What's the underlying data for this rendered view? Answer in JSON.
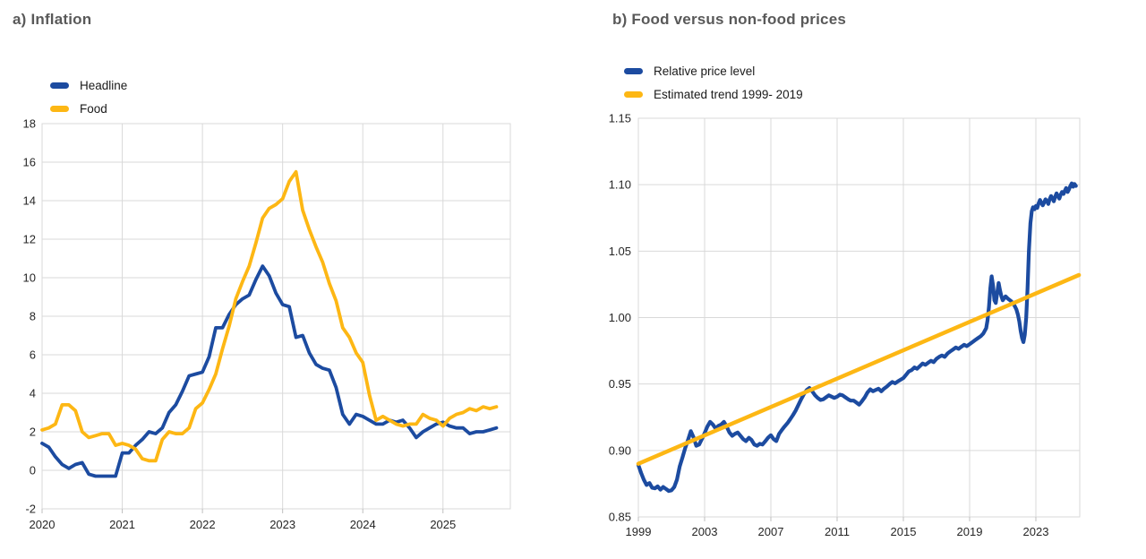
{
  "figure": {
    "background": "#ffffff",
    "title_color": "#595959",
    "grid_color": "#d9d9d9",
    "tick_color": "#bfbfbf",
    "label_color": "#262626"
  },
  "chart_data": [
    {
      "type": "line",
      "title": "a) Inflation",
      "xlabel": "",
      "ylabel": "",
      "xlim": [
        2020,
        2025.84
      ],
      "ylim": [
        -2,
        18
      ],
      "xtick_values": [
        2020,
        2021,
        2022,
        2023,
        2024,
        2025
      ],
      "xtick_labels": [
        "2020",
        "2021",
        "2022",
        "2023",
        "2024",
        "2025"
      ],
      "ytick_values": [
        -2,
        0,
        2,
        4,
        6,
        8,
        10,
        12,
        14,
        16,
        18
      ],
      "ytick_labels": [
        "-2",
        "0",
        "2",
        "4",
        "6",
        "8",
        "10",
        "12",
        "14",
        "16",
        "18"
      ],
      "grid": true,
      "legend_position": "top-left",
      "x_start": 2020.0,
      "x_step": 0.0833333,
      "series": [
        {
          "name": "Headline",
          "color": "#1c4ba0",
          "width": 3.8,
          "values": [
            1.4,
            1.2,
            0.7,
            0.3,
            0.1,
            0.3,
            0.4,
            -0.2,
            -0.3,
            -0.3,
            -0.3,
            -0.3,
            0.9,
            0.9,
            1.3,
            1.6,
            2.0,
            1.9,
            2.2,
            3.0,
            3.4,
            4.1,
            4.9,
            5.0,
            5.1,
            5.9,
            7.4,
            7.4,
            8.1,
            8.6,
            8.9,
            9.1,
            9.9,
            10.6,
            10.1,
            9.2,
            8.6,
            8.5,
            6.9,
            7.0,
            6.1,
            5.5,
            5.3,
            5.2,
            4.3,
            2.9,
            2.4,
            2.9,
            2.8,
            2.6,
            2.4,
            2.4,
            2.6,
            2.5,
            2.6,
            2.2,
            1.7,
            2.0,
            2.2,
            2.4,
            2.5,
            2.3,
            2.2,
            2.2,
            1.9,
            2.0,
            2.0,
            2.1,
            2.2
          ]
        },
        {
          "name": "Food",
          "color": "#fdb714",
          "width": 3.8,
          "values": [
            2.1,
            2.2,
            2.4,
            3.4,
            3.4,
            3.1,
            2.0,
            1.7,
            1.8,
            1.9,
            1.9,
            1.3,
            1.4,
            1.3,
            1.1,
            0.6,
            0.5,
            0.5,
            1.6,
            2.0,
            1.9,
            1.9,
            2.2,
            3.2,
            3.5,
            4.2,
            5.0,
            6.3,
            7.5,
            8.9,
            9.8,
            10.6,
            11.8,
            13.1,
            13.6,
            13.8,
            14.1,
            15.0,
            15.5,
            13.5,
            12.5,
            11.6,
            10.8,
            9.7,
            8.8,
            7.4,
            6.9,
            6.1,
            5.6,
            3.9,
            2.6,
            2.8,
            2.6,
            2.4,
            2.3,
            2.4,
            2.4,
            2.9,
            2.7,
            2.6,
            2.3,
            2.7,
            2.9,
            3.0,
            3.2,
            3.1,
            3.3,
            3.2,
            3.3
          ]
        }
      ]
    },
    {
      "type": "line",
      "title": "b) Food versus non-food prices",
      "xlabel": "",
      "ylabel": "",
      "xlim": [
        1999,
        2025.65
      ],
      "ylim": [
        0.85,
        1.15
      ],
      "xtick_values": [
        1999,
        2003,
        2007,
        2011,
        2015,
        2019,
        2023
      ],
      "xtick_labels": [
        "1999",
        "2003",
        "2007",
        "2011",
        "2015",
        "2019",
        "2023"
      ],
      "ytick_values": [
        0.85,
        0.9,
        0.95,
        1.0,
        1.05,
        1.1,
        1.15
      ],
      "ytick_labels": [
        "0.85",
        "0.90",
        "0.95",
        "1.00",
        "1.05",
        "1.10",
        "1.15"
      ],
      "grid": true,
      "legend_position": "top-left",
      "series": [
        {
          "name": "Relative price level",
          "color": "#1c4ba0",
          "width": 4.2,
          "points": [
            [
              1999.0,
              0.889
            ],
            [
              1999.17,
              0.883
            ],
            [
              1999.33,
              0.878
            ],
            [
              1999.5,
              0.874
            ],
            [
              1999.67,
              0.8755
            ],
            [
              1999.83,
              0.872
            ],
            [
              2000.0,
              0.8715
            ],
            [
              2000.17,
              0.873
            ],
            [
              2000.33,
              0.8705
            ],
            [
              2000.5,
              0.8725
            ],
            [
              2000.67,
              0.871
            ],
            [
              2000.83,
              0.8695
            ],
            [
              2001.0,
              0.87
            ],
            [
              2001.17,
              0.8725
            ],
            [
              2001.33,
              0.878
            ],
            [
              2001.5,
              0.888
            ],
            [
              2001.67,
              0.895
            ],
            [
              2001.83,
              0.902
            ],
            [
              2002.0,
              0.908
            ],
            [
              2002.17,
              0.9145
            ],
            [
              2002.33,
              0.91
            ],
            [
              2002.5,
              0.9035
            ],
            [
              2002.67,
              0.9045
            ],
            [
              2002.83,
              0.9085
            ],
            [
              2003.0,
              0.913
            ],
            [
              2003.17,
              0.918
            ],
            [
              2003.33,
              0.9215
            ],
            [
              2003.5,
              0.9195
            ],
            [
              2003.67,
              0.9165
            ],
            [
              2003.83,
              0.9185
            ],
            [
              2004.0,
              0.9195
            ],
            [
              2004.17,
              0.9215
            ],
            [
              2004.33,
              0.918
            ],
            [
              2004.5,
              0.9135
            ],
            [
              2004.67,
              0.911
            ],
            [
              2004.83,
              0.9125
            ],
            [
              2005.0,
              0.9135
            ],
            [
              2005.17,
              0.911
            ],
            [
              2005.33,
              0.9085
            ],
            [
              2005.5,
              0.907
            ],
            [
              2005.67,
              0.9095
            ],
            [
              2005.83,
              0.908
            ],
            [
              2006.0,
              0.9045
            ],
            [
              2006.17,
              0.9035
            ],
            [
              2006.33,
              0.905
            ],
            [
              2006.5,
              0.9045
            ],
            [
              2006.67,
              0.907
            ],
            [
              2006.83,
              0.9095
            ],
            [
              2007.0,
              0.9115
            ],
            [
              2007.17,
              0.9085
            ],
            [
              2007.33,
              0.907
            ],
            [
              2007.5,
              0.9125
            ],
            [
              2007.67,
              0.9155
            ],
            [
              2007.83,
              0.918
            ],
            [
              2008.0,
              0.9205
            ],
            [
              2008.17,
              0.9235
            ],
            [
              2008.33,
              0.9265
            ],
            [
              2008.5,
              0.93
            ],
            [
              2008.67,
              0.9345
            ],
            [
              2008.83,
              0.9385
            ],
            [
              2009.0,
              0.9425
            ],
            [
              2009.17,
              0.9455
            ],
            [
              2009.33,
              0.947
            ],
            [
              2009.5,
              0.9445
            ],
            [
              2009.67,
              0.9415
            ],
            [
              2009.83,
              0.9395
            ],
            [
              2010.0,
              0.938
            ],
            [
              2010.17,
              0.9385
            ],
            [
              2010.33,
              0.94
            ],
            [
              2010.5,
              0.9415
            ],
            [
              2010.67,
              0.9405
            ],
            [
              2010.83,
              0.9395
            ],
            [
              2011.0,
              0.9405
            ],
            [
              2011.17,
              0.942
            ],
            [
              2011.33,
              0.9415
            ],
            [
              2011.5,
              0.94
            ],
            [
              2011.67,
              0.9385
            ],
            [
              2011.83,
              0.9375
            ],
            [
              2012.0,
              0.9375
            ],
            [
              2012.17,
              0.936
            ],
            [
              2012.33,
              0.9345
            ],
            [
              2012.5,
              0.937
            ],
            [
              2012.67,
              0.94
            ],
            [
              2012.83,
              0.9435
            ],
            [
              2013.0,
              0.946
            ],
            [
              2013.17,
              0.9445
            ],
            [
              2013.33,
              0.9455
            ],
            [
              2013.5,
              0.9465
            ],
            [
              2013.67,
              0.9445
            ],
            [
              2013.83,
              0.9465
            ],
            [
              2014.0,
              0.948
            ],
            [
              2014.17,
              0.95
            ],
            [
              2014.33,
              0.9515
            ],
            [
              2014.5,
              0.9505
            ],
            [
              2014.67,
              0.952
            ],
            [
              2015.0,
              0.9545
            ],
            [
              2015.17,
              0.957
            ],
            [
              2015.33,
              0.9595
            ],
            [
              2015.5,
              0.9605
            ],
            [
              2015.67,
              0.9625
            ],
            [
              2015.83,
              0.9615
            ],
            [
              2016.0,
              0.9635
            ],
            [
              2016.17,
              0.9655
            ],
            [
              2016.33,
              0.9645
            ],
            [
              2016.5,
              0.966
            ],
            [
              2016.67,
              0.9675
            ],
            [
              2016.83,
              0.9665
            ],
            [
              2017.0,
              0.969
            ],
            [
              2017.17,
              0.9705
            ],
            [
              2017.33,
              0.9715
            ],
            [
              2017.5,
              0.9705
            ],
            [
              2017.67,
              0.973
            ],
            [
              2017.83,
              0.9745
            ],
            [
              2018.0,
              0.976
            ],
            [
              2018.17,
              0.9775
            ],
            [
              2018.33,
              0.9765
            ],
            [
              2018.5,
              0.978
            ],
            [
              2018.67,
              0.9795
            ],
            [
              2018.83,
              0.9785
            ],
            [
              2019.0,
              0.98
            ],
            [
              2019.17,
              0.9815
            ],
            [
              2019.33,
              0.983
            ],
            [
              2019.5,
              0.9845
            ],
            [
              2019.67,
              0.986
            ],
            [
              2019.83,
              0.988
            ],
            [
              2020.0,
              0.992
            ],
            [
              2020.08,
              0.998
            ],
            [
              2020.17,
              1.008
            ],
            [
              2020.25,
              1.022
            ],
            [
              2020.33,
              1.031
            ],
            [
              2020.42,
              1.024
            ],
            [
              2020.5,
              1.013
            ],
            [
              2020.58,
              1.011
            ],
            [
              2020.67,
              1.019
            ],
            [
              2020.75,
              1.026
            ],
            [
              2020.83,
              1.021
            ],
            [
              2020.92,
              1.016
            ],
            [
              2021.0,
              1.013
            ],
            [
              2021.17,
              1.016
            ],
            [
              2021.33,
              1.014
            ],
            [
              2021.5,
              1.0125
            ],
            [
              2021.67,
              1.01
            ],
            [
              2021.83,
              1.006
            ],
            [
              2021.92,
              1.002
            ],
            [
              2022.0,
              0.997
            ],
            [
              2022.08,
              0.99
            ],
            [
              2022.17,
              0.9845
            ],
            [
              2022.25,
              0.9815
            ],
            [
              2022.33,
              0.987
            ],
            [
              2022.42,
              1.0
            ],
            [
              2022.5,
              1.022
            ],
            [
              2022.58,
              1.05
            ],
            [
              2022.67,
              1.071
            ],
            [
              2022.75,
              1.08
            ],
            [
              2022.83,
              1.083
            ],
            [
              2022.92,
              1.0815
            ],
            [
              2023.0,
              1.084
            ],
            [
              2023.08,
              1.0825
            ],
            [
              2023.17,
              1.086
            ],
            [
              2023.25,
              1.0885
            ],
            [
              2023.33,
              1.0865
            ],
            [
              2023.42,
              1.0845
            ],
            [
              2023.5,
              1.0865
            ],
            [
              2023.58,
              1.089
            ],
            [
              2023.67,
              1.0875
            ],
            [
              2023.75,
              1.0855
            ],
            [
              2023.83,
              1.089
            ],
            [
              2023.92,
              1.0915
            ],
            [
              2024.0,
              1.0895
            ],
            [
              2024.08,
              1.0875
            ],
            [
              2024.17,
              1.091
            ],
            [
              2024.25,
              1.0935
            ],
            [
              2024.33,
              1.0915
            ],
            [
              2024.42,
              1.0895
            ],
            [
              2024.5,
              1.0925
            ],
            [
              2024.58,
              1.0945
            ],
            [
              2024.67,
              1.093
            ],
            [
              2024.75,
              1.0955
            ],
            [
              2024.83,
              1.0975
            ],
            [
              2024.92,
              1.0945
            ],
            [
              2025.0,
              1.0965
            ],
            [
              2025.08,
              1.099
            ],
            [
              2025.17,
              1.101
            ],
            [
              2025.25,
              1.0985
            ],
            [
              2025.33,
              1.1005
            ],
            [
              2025.42,
              1.099
            ]
          ]
        },
        {
          "name": "Estimated trend 1999- 2019",
          "color": "#fdb714",
          "width": 4.5,
          "points": [
            [
              1999.0,
              0.89
            ],
            [
              2025.6,
              1.032
            ]
          ]
        }
      ]
    }
  ]
}
